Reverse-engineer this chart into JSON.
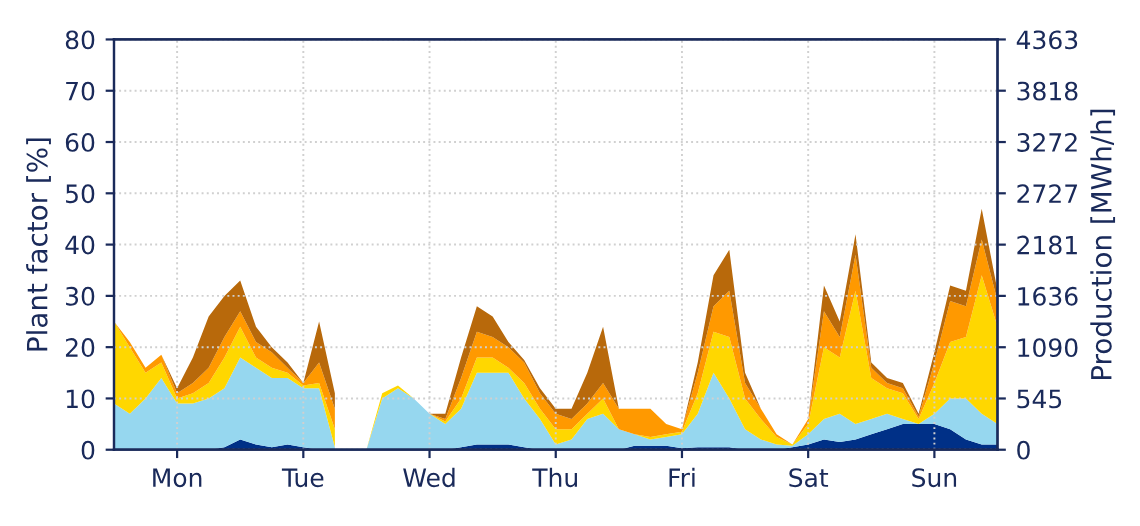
{
  "chart_data": {
    "type": "area",
    "stacked": true,
    "ylabel": "Plant factor [%]",
    "y2label": "Production [MWh/h]",
    "categories": [
      null,
      null,
      null,
      null,
      "Mon",
      null,
      null,
      null,
      null,
      null,
      null,
      null,
      "Tue",
      null,
      null,
      null,
      null,
      null,
      null,
      null,
      "Wed",
      null,
      null,
      null,
      null,
      null,
      null,
      null,
      "Thu",
      null,
      null,
      null,
      null,
      null,
      null,
      null,
      "Fri",
      null,
      null,
      null,
      null,
      null,
      null,
      null,
      "Sat",
      null,
      null,
      null,
      null,
      null,
      null,
      null,
      "Sun",
      null,
      null,
      null,
      null
    ],
    "series": [
      {
        "color": "#003087",
        "values": [
          0,
          0,
          0,
          0,
          0,
          0,
          0,
          0.5,
          2,
          1,
          0.5,
          1,
          0.5,
          0,
          0,
          null,
          0,
          0,
          0,
          0,
          0,
          0,
          0.5,
          1,
          1,
          1,
          0.5,
          0,
          0,
          0,
          0,
          0,
          0,
          0.8,
          0.8,
          0.8,
          0.3,
          0.5,
          0.5,
          0.5,
          0,
          0,
          0,
          0.5,
          1,
          2,
          1.5,
          2,
          3,
          4,
          5,
          5,
          5,
          4,
          2,
          1,
          1
        ]
      },
      {
        "color": "#96d7ef",
        "values": [
          9,
          7,
          10,
          14,
          9,
          9,
          10,
          11.5,
          16,
          15,
          13.5,
          13,
          11.5,
          12,
          0.5,
          null,
          0,
          10,
          12,
          10,
          7,
          5,
          7.5,
          14,
          14,
          14,
          9.5,
          6,
          1,
          2,
          6,
          7,
          4,
          2.2,
          1.2,
          1.7,
          2.7,
          6.5,
          14.5,
          9.5,
          4,
          2,
          1,
          0.3,
          2,
          4,
          5.5,
          3,
          3,
          3,
          1,
          0,
          2,
          6,
          8,
          6,
          4
        ]
      },
      {
        "color": "#ffd700",
        "values": [
          16,
          13,
          5,
          3,
          1,
          2,
          3,
          6,
          6,
          2,
          2,
          1,
          0.5,
          1,
          3.5,
          null,
          0,
          1,
          0.5,
          0,
          0,
          0.5,
          2,
          3,
          3,
          1,
          3,
          2,
          3,
          2,
          1,
          3,
          0,
          0,
          0.5,
          0.5,
          0.5,
          4,
          8,
          12,
          6,
          4,
          1.5,
          0.2,
          2,
          14,
          11,
          26,
          8,
          5,
          5,
          1,
          6,
          11,
          12,
          27,
          19
        ]
      },
      {
        "color": "#ff9900",
        "values": [
          0,
          1,
          1,
          1.5,
          1,
          2,
          3,
          4,
          3,
          3,
          3,
          1,
          0.5,
          4,
          4,
          null,
          0,
          0,
          0,
          0,
          0,
          0.5,
          4,
          5,
          4,
          4,
          4,
          3,
          3,
          2,
          2,
          3,
          4,
          5,
          5.5,
          2,
          0.5,
          4,
          5,
          9,
          3,
          2,
          0.5,
          0,
          1,
          7,
          4,
          7,
          2,
          1,
          1,
          0.5,
          4,
          8,
          6,
          7,
          5
        ]
      },
      {
        "color": "#b8690b",
        "values": [
          0,
          0,
          0,
          0,
          1,
          5,
          10,
          8,
          6,
          3,
          1,
          1,
          0,
          8,
          3,
          null,
          0,
          0,
          0,
          0,
          0,
          1,
          4,
          5,
          4,
          1,
          0.5,
          1,
          1,
          2,
          6,
          11,
          0,
          0,
          0,
          0,
          0,
          2,
          6,
          8,
          2,
          0,
          0,
          0,
          0,
          5,
          3,
          4,
          1,
          1,
          1,
          0.5,
          2,
          3,
          3,
          6,
          2
        ]
      }
    ],
    "ylim": [
      0,
      80
    ],
    "yticks": [
      0,
      10,
      20,
      30,
      40,
      50,
      60,
      70,
      80
    ],
    "y2lim": [
      0,
      4363
    ],
    "y2ticks": [
      0,
      545,
      1090,
      1636,
      2181,
      2727,
      3272,
      3818,
      4363
    ],
    "grid": true,
    "legend": false
  }
}
